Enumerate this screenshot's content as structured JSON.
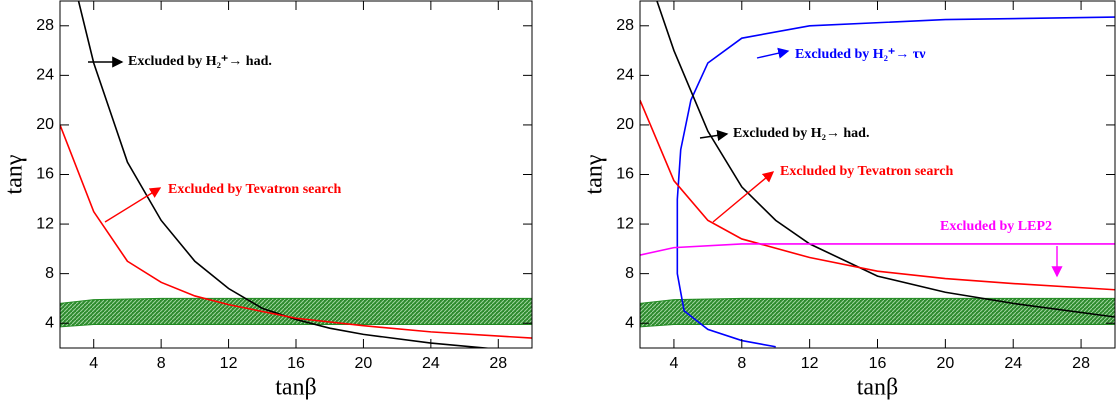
{
  "chart_data": [
    {
      "type": "line",
      "x_label": "tanβ",
      "y_label": "tanγ",
      "xlim": [
        2,
        30
      ],
      "ylim": [
        2,
        30
      ],
      "xticks": [
        4,
        8,
        12,
        16,
        20,
        24,
        28
      ],
      "yticks": [
        4,
        8,
        12,
        16,
        20,
        24,
        28
      ],
      "band": {
        "color": "#228b22",
        "x": [
          2,
          4,
          8,
          16,
          30
        ],
        "upper": [
          5.6,
          5.9,
          6.0,
          6.0,
          6.0
        ],
        "lower": [
          3.7,
          3.9,
          3.9,
          3.9,
          3.9
        ]
      },
      "series": [
        {
          "color": "#000000",
          "x": [
            3.1,
            4,
            6,
            8,
            10,
            12,
            14,
            16,
            18,
            20,
            24,
            28,
            30
          ],
          "values": [
            30,
            25,
            17,
            12.3,
            9,
            6.8,
            5.2,
            4.3,
            3.6,
            3.1,
            2.4,
            1.9,
            1.7
          ]
        },
        {
          "color": "#ff0000",
          "x": [
            2,
            4,
            6,
            8,
            10,
            12,
            16,
            20,
            24,
            30
          ],
          "values": [
            20,
            13,
            9,
            7.3,
            6.2,
            5.5,
            4.4,
            3.8,
            3.3,
            2.8
          ]
        }
      ],
      "annotations": [
        {
          "text": "Excluded by H₂⁺→ had.",
          "color": "#000000"
        },
        {
          "text": "Excluded by Tevatron search",
          "color": "#ff0000"
        }
      ]
    },
    {
      "type": "line",
      "x_label": "tanβ",
      "y_label": "tanγ",
      "xlim": [
        2,
        30
      ],
      "ylim": [
        2,
        30
      ],
      "xticks": [
        4,
        8,
        12,
        16,
        20,
        24,
        28
      ],
      "yticks": [
        4,
        8,
        12,
        16,
        20,
        24,
        28
      ],
      "band": {
        "color": "#228b22",
        "x": [
          2,
          4,
          8,
          16,
          30
        ],
        "upper": [
          5.6,
          5.9,
          6.0,
          6.0,
          6.0
        ],
        "lower": [
          3.7,
          3.9,
          3.9,
          3.9,
          3.9
        ]
      },
      "series": [
        {
          "color": "#0000ff",
          "x": [
            10,
            8,
            6,
            4.6,
            4.2,
            4.2,
            4.4,
            5,
            6,
            8,
            12,
            20,
            30
          ],
          "values": [
            2.1,
            2.6,
            3.5,
            5,
            8,
            14,
            18,
            22,
            25,
            27,
            28,
            28.5,
            28.7
          ]
        },
        {
          "color": "#000000",
          "x": [
            3,
            4,
            6,
            8,
            10,
            12,
            16,
            20,
            24,
            30
          ],
          "values": [
            30,
            26,
            19.5,
            15,
            12.3,
            10.4,
            7.8,
            6.5,
            5.6,
            4.5
          ]
        },
        {
          "color": "#ff0000",
          "x": [
            2,
            4,
            6,
            8,
            12,
            16,
            20,
            24,
            30
          ],
          "values": [
            22,
            15.5,
            12.3,
            10.8,
            9.3,
            8.2,
            7.6,
            7.2,
            6.7
          ]
        },
        {
          "color": "#ff00ff",
          "x": [
            2,
            4,
            8,
            30
          ],
          "values": [
            9.5,
            10.1,
            10.4,
            10.4
          ]
        }
      ],
      "annotations": [
        {
          "text": "Excluded by H₂⁺→ τν",
          "color": "#0000ff"
        },
        {
          "text": "Excluded by H₂→ had.",
          "color": "#000000"
        },
        {
          "text": "Excluded by Tevatron search",
          "color": "#ff0000"
        },
        {
          "text": "Excluded by LEP2",
          "color": "#ff00ff"
        }
      ]
    }
  ]
}
